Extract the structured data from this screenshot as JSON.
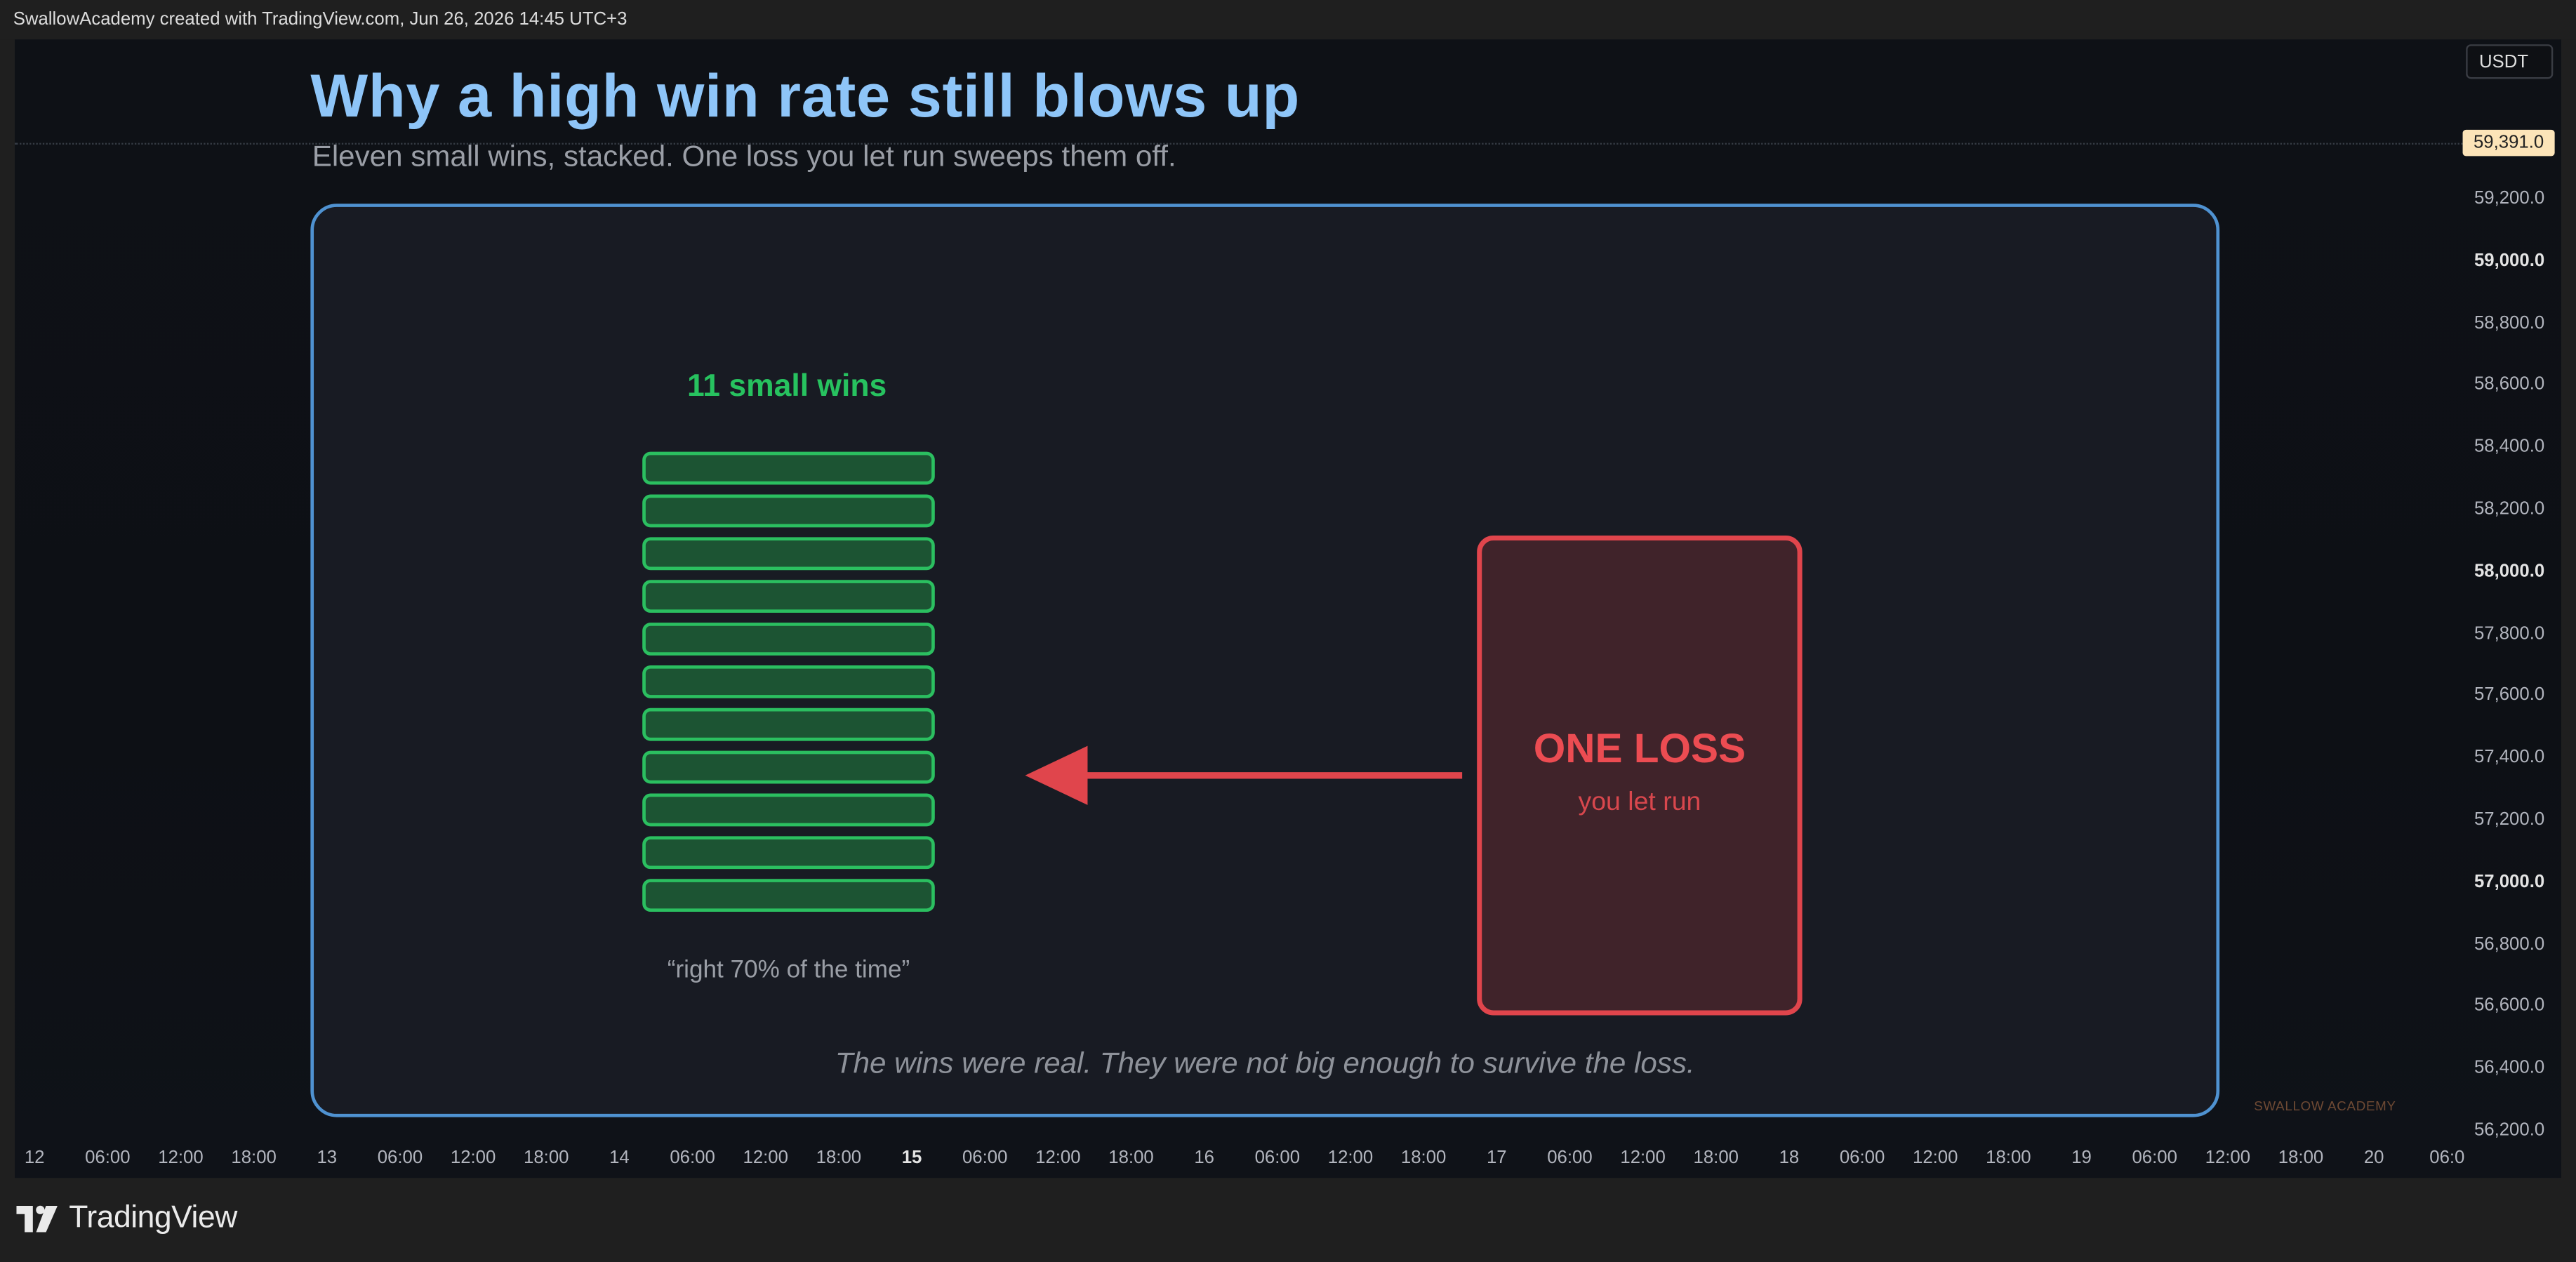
{
  "header": {
    "attribution": "SwallowAcademy created with TradingView.com, Jun 26, 2026 14:45 UTC+3"
  },
  "price_scale": {
    "currency": "USDT",
    "current_price": "59,391.0",
    "labels": [
      "59,200.0",
      "59,000.0",
      "58,800.0",
      "58,600.0",
      "58,400.0",
      "58,200.0",
      "58,000.0",
      "57,800.0",
      "57,600.0",
      "57,400.0",
      "57,200.0",
      "57,000.0",
      "56,800.0",
      "56,600.0",
      "56,400.0",
      "56,200.0"
    ]
  },
  "time_axis": {
    "labels": [
      "12",
      "06:00",
      "12:00",
      "18:00",
      "13",
      "06:00",
      "12:00",
      "18:00",
      "14",
      "06:00",
      "12:00",
      "18:00",
      "15",
      "06:00",
      "12:00",
      "18:00",
      "16",
      "06:00",
      "12:00",
      "18:00",
      "17",
      "06:00",
      "12:00",
      "18:00",
      "18",
      "06:00",
      "12:00",
      "18:00",
      "19",
      "06:00",
      "12:00",
      "18:00",
      "20",
      "06:0"
    ]
  },
  "infographic": {
    "title": "Why a high win rate still blows up",
    "subtitle": "Eleven small wins, stacked. One loss you let run sweeps them off.",
    "wins_label": "11 small wins",
    "win_count": 11,
    "wins_quote": "“right 70% of the time”",
    "loss_title": "ONE LOSS",
    "loss_subtitle": "you let run",
    "footnote": "The wins were real. They were not big enough to survive the loss.",
    "colors": {
      "title": "#8ec5f8",
      "win": "#2bbf60",
      "loss": "#e0454c",
      "panel_border": "#4f92d1"
    }
  },
  "watermark": "SWALLOW ACADEMY",
  "footer": {
    "brand": "TradingView",
    "brand_icon": "tradingview-logo-icon"
  }
}
